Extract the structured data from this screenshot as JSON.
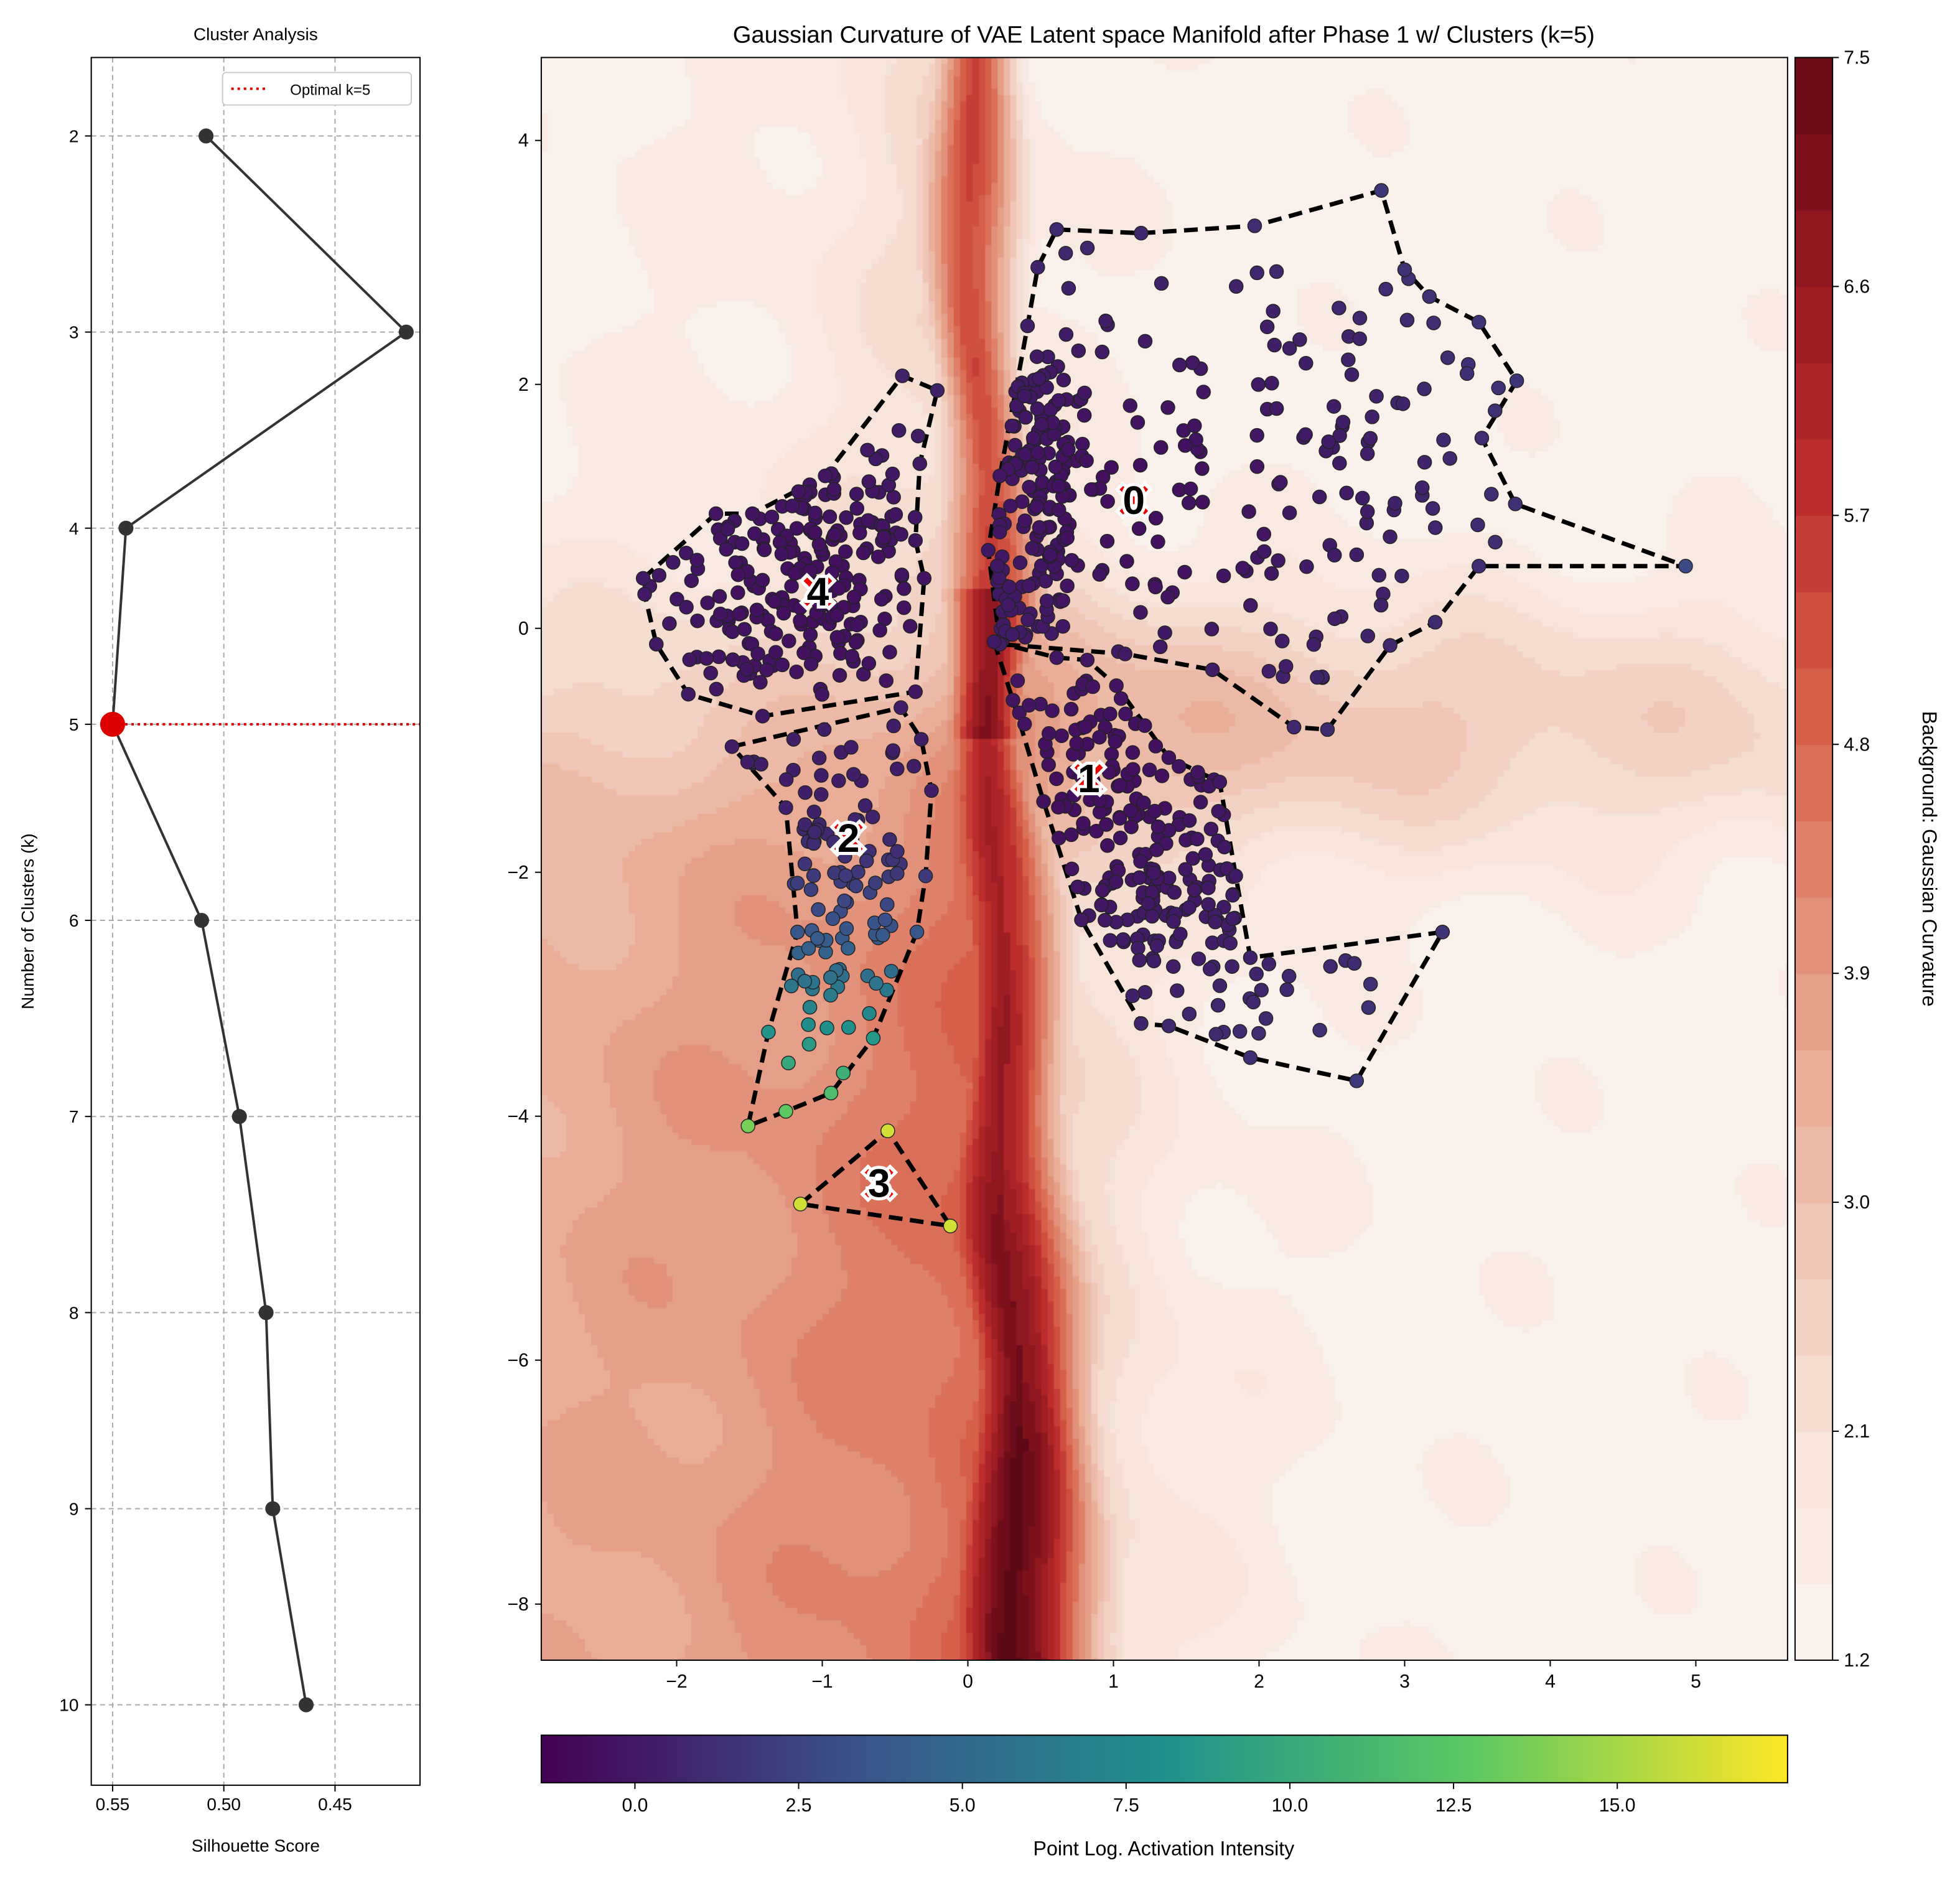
{
  "chart_data": [
    {
      "type": "line",
      "title": "Cluster Analysis",
      "xlabel": "Silhouette Score",
      "ylabel": "Number of Clusters (k)",
      "x_inverted": true,
      "y_inverted": true,
      "xlim": [
        0.5596,
        0.4118
      ],
      "ylim": [
        1.6,
        10.41
      ],
      "xticks": [
        0.55,
        0.5,
        0.45
      ],
      "xtick_labels": [
        "0.55",
        "0.50",
        "0.45"
      ],
      "yticks": [
        2,
        3,
        4,
        5,
        6,
        7,
        8,
        9,
        10
      ],
      "ytick_labels": [
        "2",
        "3",
        "4",
        "5",
        "6",
        "7",
        "8",
        "9",
        "10"
      ],
      "grid": true,
      "series": [
        {
          "name": "Silhouette",
          "k": [
            2,
            3,
            4,
            5,
            6,
            7,
            8,
            9,
            10
          ],
          "values": [
            0.508,
            0.418,
            0.544,
            0.55,
            0.51,
            0.493,
            0.481,
            0.478,
            0.463
          ],
          "color": "#333333"
        }
      ],
      "highlight": {
        "k": 5,
        "value": 0.55,
        "color": "#dd0000"
      },
      "legend": {
        "entries": [
          "Optimal k=5"
        ],
        "placement": "top-right"
      }
    },
    {
      "type": "scatter",
      "title": "Gaussian Curvature of VAE Latent space Manifold after Phase 1 w/ Clusters (k=5)",
      "xlim": [
        -2.93,
        5.63
      ],
      "ylim": [
        -8.46,
        4.68
      ],
      "xticks": [
        -2,
        -1,
        0,
        1,
        2,
        3,
        4,
        5
      ],
      "xtick_labels": [
        "−2",
        "−1",
        "0",
        "1",
        "2",
        "3",
        "4",
        "5"
      ],
      "yticks": [
        4,
        2,
        0,
        -2,
        -4,
        -6,
        -8
      ],
      "ytick_labels": [
        "4",
        "2",
        "0",
        "−2",
        "−4",
        "−6",
        "−8"
      ],
      "background": {
        "type": "contourf",
        "label": "Background: Gaussian Curvature",
        "range": [
          1.2,
          7.5
        ],
        "colorbar_ticks": [
          7.5,
          6.6,
          5.7,
          4.8,
          3.9,
          3.0,
          2.1,
          1.2
        ],
        "colorbar_tick_labels": [
          "7.5",
          "6.6",
          "5.7",
          "4.8",
          "3.9",
          "3.0",
          "2.1",
          "1.2"
        ],
        "colors": [
          "#faf1ec",
          "#f5ddd2",
          "#ecbba7",
          "#e2917a",
          "#d65f4a",
          "#bd2c2c",
          "#8e1720",
          "#5c0815"
        ]
      },
      "point_colorbar": {
        "label": "Point Log. Activation Intensity",
        "range": [
          -1.43,
          17.6
        ],
        "ticks": [
          0,
          2.5,
          5,
          7.5,
          10,
          12.5,
          15
        ],
        "tick_labels": [
          "0.0",
          "2.5",
          "5.0",
          "7.5",
          "10.0",
          "12.5",
          "15.0"
        ],
        "colors": [
          "#440154",
          "#3b528b",
          "#21918c",
          "#5ec962",
          "#fde725"
        ]
      },
      "clusters": [
        {
          "label": "0",
          "centroid": [
            1.14,
            1.05
          ],
          "hull": [
            [
              0.61,
              3.27
            ],
            [
              1.19,
              3.24
            ],
            [
              1.97,
              3.3
            ],
            [
              2.84,
              3.59
            ],
            [
              3.0,
              2.94
            ],
            [
              3.17,
              2.72
            ],
            [
              3.51,
              2.51
            ],
            [
              3.77,
              2.03
            ],
            [
              3.53,
              1.56
            ],
            [
              3.76,
              1.02
            ],
            [
              4.93,
              0.51
            ],
            [
              3.51,
              0.51
            ],
            [
              3.21,
              0.05
            ],
            [
              2.9,
              -0.14
            ],
            [
              2.47,
              -0.83
            ],
            [
              2.24,
              -0.81
            ],
            [
              1.68,
              -0.34
            ],
            [
              1.08,
              -0.21
            ],
            [
              0.22,
              -0.13
            ],
            [
              0.14,
              0.64
            ],
            [
              0.22,
              1.25
            ],
            [
              0.41,
              2.48
            ],
            [
              0.48,
              2.96
            ]
          ]
        },
        {
          "label": "1",
          "centroid": [
            0.83,
            -1.23
          ],
          "hull": [
            [
              0.18,
              -0.11
            ],
            [
              0.61,
              -0.24
            ],
            [
              0.82,
              -0.26
            ],
            [
              1.02,
              -0.47
            ],
            [
              1.38,
              -1.06
            ],
            [
              1.73,
              -1.26
            ],
            [
              1.84,
              -2.03
            ],
            [
              1.94,
              -2.7
            ],
            [
              3.26,
              -2.49
            ],
            [
              2.67,
              -3.71
            ],
            [
              1.94,
              -3.52
            ],
            [
              1.38,
              -3.26
            ],
            [
              1.19,
              -3.24
            ],
            [
              0.78,
              -2.39
            ],
            [
              0.52,
              -1.42
            ],
            [
              0.31,
              -0.59
            ]
          ]
        },
        {
          "label": "2",
          "centroid": [
            -0.82,
            -1.72
          ],
          "hull": [
            [
              -1.62,
              -0.97
            ],
            [
              -0.46,
              -0.65
            ],
            [
              -0.32,
              -0.91
            ],
            [
              -0.25,
              -1.33
            ],
            [
              -0.29,
              -2.03
            ],
            [
              -0.35,
              -2.49
            ],
            [
              -0.65,
              -3.36
            ],
            [
              -0.94,
              -3.81
            ],
            [
              -1.25,
              -3.96
            ],
            [
              -1.51,
              -4.08
            ],
            [
              -1.37,
              -3.31
            ],
            [
              -1.17,
              -2.49
            ],
            [
              -1.25,
              -1.47
            ]
          ]
        },
        {
          "label": "3",
          "centroid": [
            -0.61,
            -4.55
          ],
          "hull": [
            [
              -1.15,
              -4.72
            ],
            [
              -0.55,
              -4.12
            ],
            [
              -0.12,
              -4.9
            ]
          ]
        },
        {
          "label": "4",
          "centroid": [
            -1.03,
            0.3
          ],
          "hull": [
            [
              -2.23,
              0.41
            ],
            [
              -1.73,
              0.94
            ],
            [
              -1.48,
              0.94
            ],
            [
              -0.98,
              1.25
            ],
            [
              -0.45,
              2.07
            ],
            [
              -0.21,
              1.95
            ],
            [
              -0.33,
              1.35
            ],
            [
              -0.36,
              0.72
            ],
            [
              -0.3,
              0.41
            ],
            [
              -0.36,
              -0.52
            ],
            [
              -1.41,
              -0.72
            ],
            [
              -1.92,
              -0.54
            ],
            [
              -2.14,
              -0.13
            ],
            [
              -2.22,
              0.28
            ]
          ]
        }
      ]
    }
  ]
}
